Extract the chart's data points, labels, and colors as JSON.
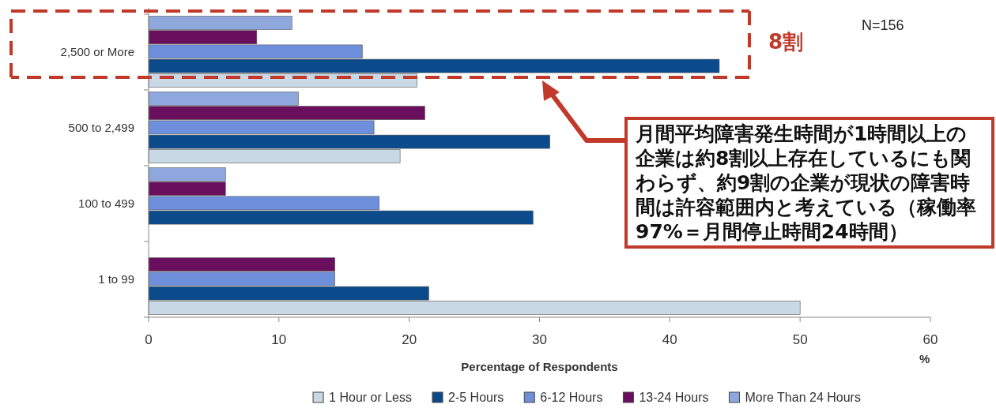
{
  "chart_data": {
    "type": "bar",
    "orientation": "horizontal",
    "categories": [
      "2,500 or More",
      "500 to 2,499",
      "100 to 499",
      "1 to 99"
    ],
    "xlabel": "Percentage of Respondents",
    "xlim": [
      0,
      60
    ],
    "xticks": [
      0,
      10,
      20,
      30,
      40,
      50,
      60
    ],
    "legend": "bottom",
    "grid": false,
    "series": [
      {
        "name": "1 Hour or Less",
        "color": "#c8d8e4",
        "values": [
          20.6,
          19.3,
          null,
          50.0
        ]
      },
      {
        "name": "2-5 Hours",
        "color": "#0b4a8b",
        "values": [
          43.8,
          30.8,
          29.5,
          21.5
        ]
      },
      {
        "name": "6-12 Hours",
        "color": "#6d8fdc",
        "values": [
          16.4,
          17.3,
          17.7,
          14.3
        ]
      },
      {
        "name": "13-24 Hours",
        "color": "#6a0f5d",
        "values": [
          8.3,
          21.2,
          5.9,
          14.3
        ]
      },
      {
        "name": "More Than 24 Hours",
        "color": "#8ea8de",
        "values": [
          11.0,
          11.5,
          5.9,
          null
        ]
      }
    ],
    "annotations": [
      "N=156",
      "8割",
      "月間平均障害発生時間が1時間以上の企業は約8割以上存在しているにも関わらず、約9割の企業が現状の障害時間は許容範囲内と考えている（稼働率 97%＝月間停止時間24時間）",
      "%"
    ]
  }
}
